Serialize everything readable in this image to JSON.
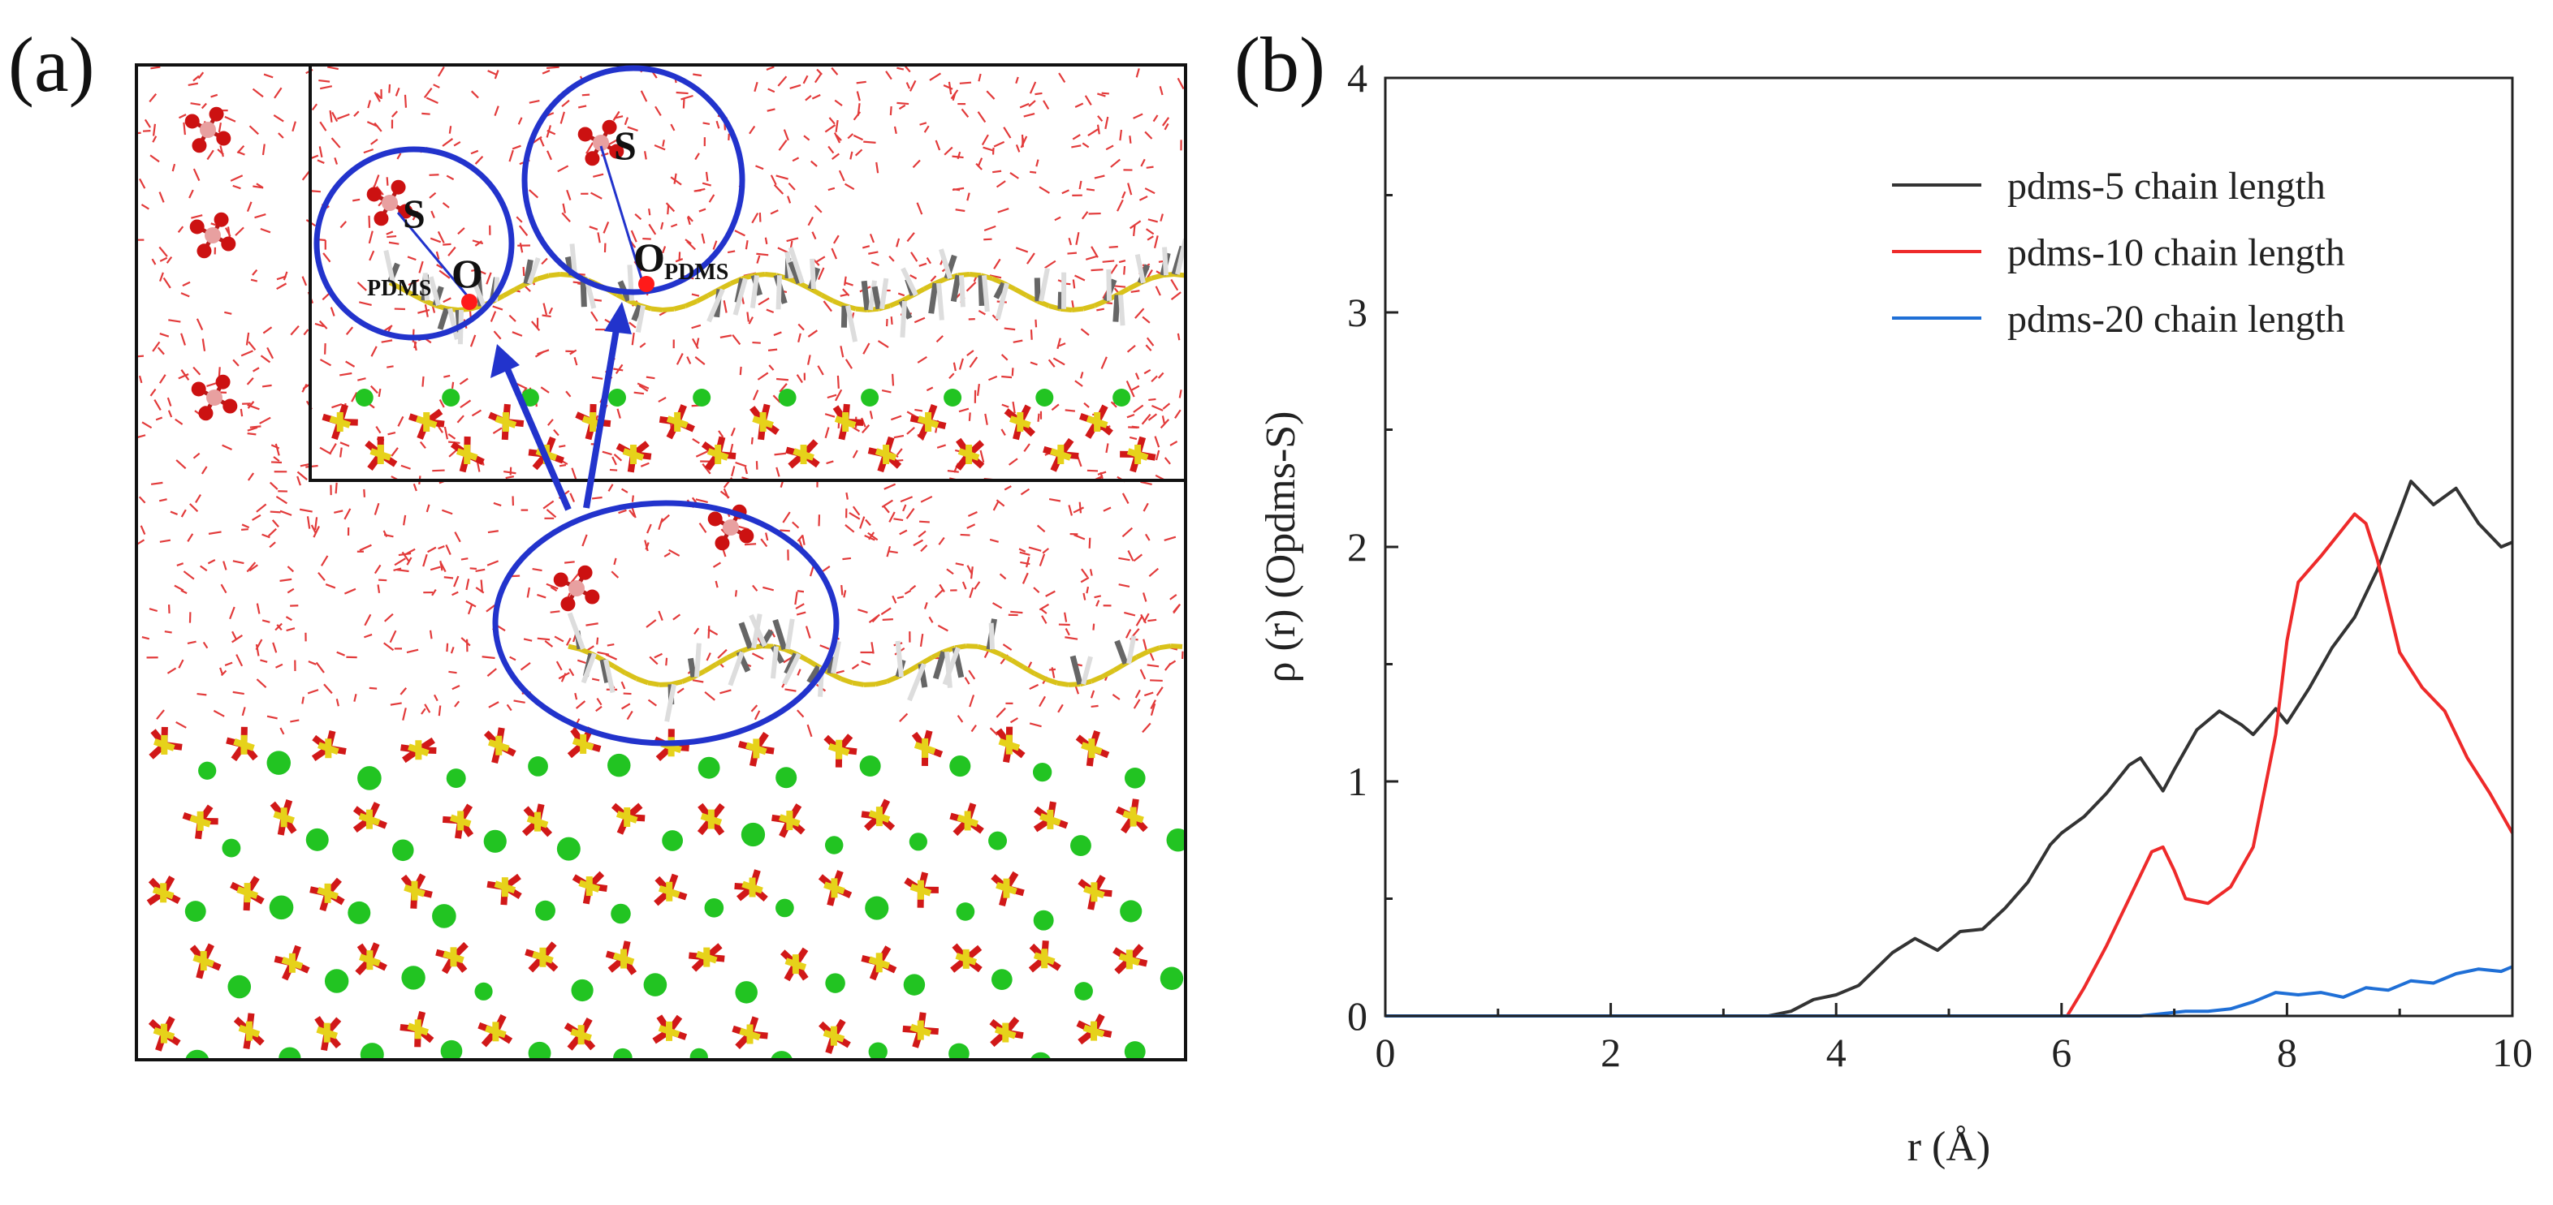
{
  "figure": {
    "panel_a_label": "(a)",
    "panel_b_label": "(b)"
  },
  "snapshot": {
    "atom_label_s": "S",
    "atom_label_o": "O",
    "subscript_pdms": "PDMS",
    "colors": {
      "water": "#e23a3a",
      "oxygen": "#cc1111",
      "sulfur": "#e6d21a",
      "calcium": "#22c422",
      "carbon": "#666666",
      "hydrogen": "#dddddd",
      "circle": "#2233cc",
      "sulfate_s": "#e8a0a0"
    }
  },
  "chart_data": {
    "type": "line",
    "title": "",
    "xlabel": "r (Å)",
    "ylabel": "ρ (r) (Opdms-S)",
    "xlim": [
      0,
      10
    ],
    "ylim": [
      0,
      4
    ],
    "xticks": [
      "0",
      "2",
      "4",
      "6",
      "8",
      "10"
    ],
    "yticks": [
      "0",
      "1",
      "2",
      "3",
      "4"
    ],
    "legend_position": "top-right",
    "series": [
      {
        "name": "pdms-5 chain length",
        "color": "#333333",
        "x": [
          0,
          3.4,
          3.6,
          3.8,
          4.0,
          4.2,
          4.5,
          4.7,
          4.9,
          5.1,
          5.3,
          5.5,
          5.7,
          5.9,
          6.0,
          6.2,
          6.4,
          6.6,
          6.7,
          6.9,
          7.0,
          7.2,
          7.4,
          7.6,
          7.7,
          7.9,
          8.0,
          8.2,
          8.4,
          8.6,
          8.8,
          9.0,
          9.1,
          9.3,
          9.5,
          9.7,
          9.9,
          10.0
        ],
        "y": [
          0,
          0,
          0.02,
          0.07,
          0.09,
          0.13,
          0.27,
          0.33,
          0.28,
          0.36,
          0.37,
          0.46,
          0.57,
          0.73,
          0.78,
          0.85,
          0.95,
          1.07,
          1.1,
          0.96,
          1.05,
          1.22,
          1.3,
          1.24,
          1.2,
          1.31,
          1.25,
          1.4,
          1.57,
          1.7,
          1.9,
          2.15,
          2.28,
          2.18,
          2.25,
          2.1,
          2.0,
          2.02
        ]
      },
      {
        "name": "pdms-10 chain length",
        "color": "#ee2a2a",
        "x": [
          0,
          6.05,
          6.2,
          6.4,
          6.6,
          6.8,
          6.9,
          7.0,
          7.1,
          7.3,
          7.5,
          7.7,
          7.9,
          8.0,
          8.1,
          8.3,
          8.5,
          8.6,
          8.7,
          8.8,
          9.0,
          9.2,
          9.4,
          9.6,
          9.8,
          10.0
        ],
        "y": [
          0,
          0,
          0.12,
          0.3,
          0.5,
          0.7,
          0.72,
          0.62,
          0.5,
          0.48,
          0.55,
          0.72,
          1.2,
          1.6,
          1.85,
          1.96,
          2.08,
          2.14,
          2.1,
          1.95,
          1.55,
          1.4,
          1.3,
          1.1,
          0.95,
          0.78
        ]
      },
      {
        "name": "pdms-20 chain length",
        "color": "#1f6fd6",
        "x": [
          0,
          6.7,
          6.9,
          7.1,
          7.3,
          7.5,
          7.7,
          7.9,
          8.1,
          8.3,
          8.5,
          8.7,
          8.9,
          9.1,
          9.3,
          9.5,
          9.7,
          9.9,
          10.0
        ],
        "y": [
          0,
          0,
          0.01,
          0.02,
          0.02,
          0.03,
          0.06,
          0.1,
          0.09,
          0.1,
          0.08,
          0.12,
          0.11,
          0.15,
          0.14,
          0.18,
          0.2,
          0.19,
          0.21
        ]
      }
    ]
  }
}
